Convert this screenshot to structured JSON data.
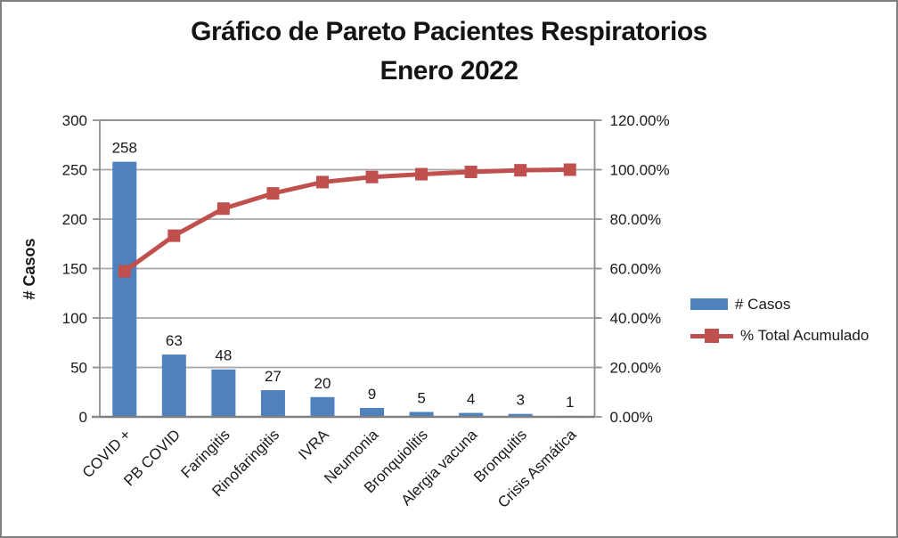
{
  "window": {
    "background": "#FFFFFF",
    "border_color": "#7F7F7F"
  },
  "title": {
    "line1": "Gráfico de Pareto Pacientes Respiratorios",
    "line2": "Enero 2022"
  },
  "legend": {
    "position": "right",
    "items": [
      {
        "label": "# Casos",
        "swatch": "bar",
        "color": "#4E81BD"
      },
      {
        "label": "% Total Acumulado",
        "swatch": "line-square-marker",
        "color": "#C0504D"
      }
    ]
  },
  "chart_data": {
    "type": "bar",
    "subtype": "pareto (bars + cumulative percentage line)",
    "title": "Gráfico de Pareto Pacientes Respiratorios",
    "subtitle": "Enero 2022",
    "categories": [
      "COVID +",
      "PB COVID",
      "Faringitis",
      "Rinofaringitis",
      "IVRA",
      "Neumonia",
      "Bronquiolitis",
      "Alergia vacuna",
      "Bronquitis",
      "Crisis Asmática"
    ],
    "series": [
      {
        "name": "# Casos",
        "type": "bar",
        "axis": "left",
        "color": "#4E81BD",
        "values": [
          258,
          63,
          48,
          27,
          20,
          9,
          5,
          4,
          3,
          1
        ],
        "data_labels": [
          "258",
          "63",
          "48",
          "27",
          "20",
          "9",
          "5",
          "4",
          "3",
          "1"
        ]
      },
      {
        "name": "% Total Acumulado",
        "type": "line",
        "axis": "right",
        "color": "#C0504D",
        "marker": "square",
        "values_percent": [
          58.9,
          73.29,
          84.25,
          90.41,
          94.98,
          97.03,
          98.17,
          99.09,
          99.77,
          100.0
        ]
      }
    ],
    "y_left": {
      "label": "# Casos",
      "min": 0,
      "max": 300,
      "step": 50,
      "tick_labels": [
        "0",
        "50",
        "100",
        "150",
        "200",
        "250",
        "300"
      ]
    },
    "y_right": {
      "min": 0,
      "max": 120,
      "step": 20,
      "tick_labels": [
        "0.00%",
        "20.00%",
        "40.00%",
        "60.00%",
        "80.00%",
        "100.00%",
        "120.00%"
      ]
    },
    "grid": "horizontal",
    "legend_position": "right"
  },
  "colors": {
    "bar": "#4E81BD",
    "line": "#C0504D",
    "gridline": "#A6A6A6",
    "frame": "#8E8E8E",
    "axis_line": "#808080",
    "text": "#1A1A1A"
  }
}
